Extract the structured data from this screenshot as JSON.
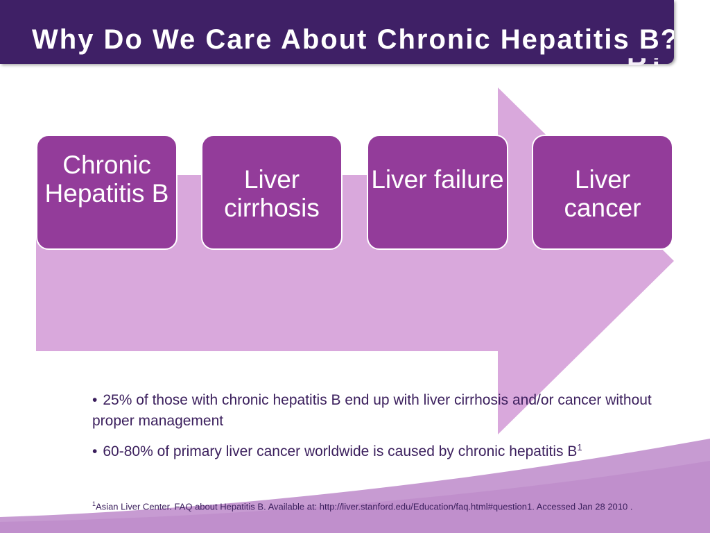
{
  "title": "Why Do We Care About Chronic Hepatitis B?",
  "title_overflow": "B?",
  "steps": [
    {
      "label": "Chronic Hepatitis B"
    },
    {
      "label": "Liver cirrhosis"
    },
    {
      "label": "Liver failure"
    },
    {
      "label": "Liver cancer"
    }
  ],
  "bullets": [
    {
      "marker": "•",
      "text": "25% of those with chronic hepatitis B end up with liver cirrhosis and/or cancer without proper management"
    },
    {
      "marker": "•",
      "text": "60-80% of primary liver cancer worldwide is caused by chronic hepatitis B",
      "superscript": "1"
    }
  ],
  "footnote": {
    "marker": "1",
    "text": "Asian Liver Center. FAQ about Hepatitis B. Available at: http://liver.stanford.edu/Education/faq.html#question1. Accessed Jan 28 2010 ."
  },
  "colors": {
    "title_bar": "#3f2066",
    "arrow": "#d9a8dc",
    "step_box": "#933c9a",
    "text": "#3a1e5c",
    "wave": "#c79bd2"
  }
}
